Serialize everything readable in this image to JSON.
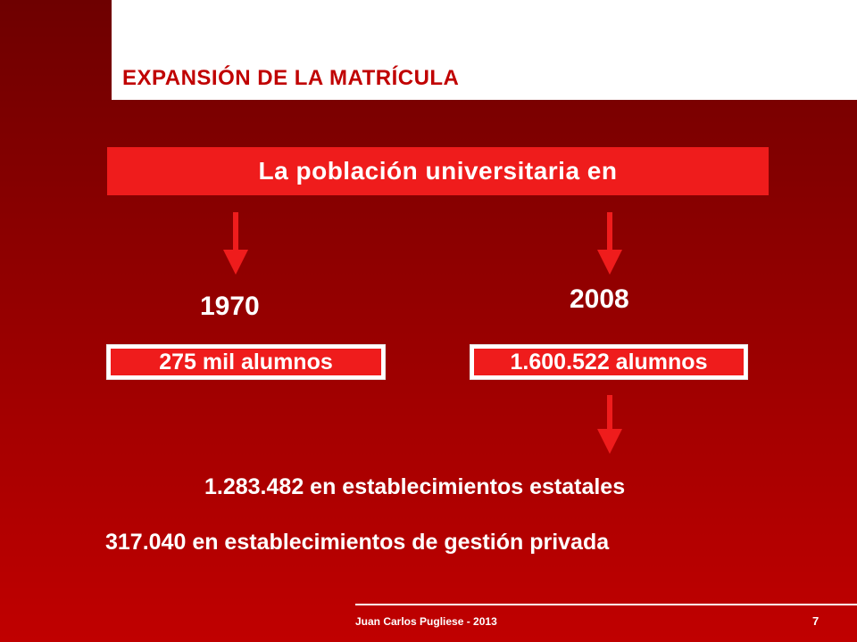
{
  "slide": {
    "title": "EXPANSIÓN DE LA MATRÍCULA",
    "banner": "La población universitaria en",
    "left": {
      "year": "1970",
      "count": "275 mil alumnos"
    },
    "right": {
      "year": "2008",
      "count": "1.600.522 alumnos"
    },
    "breakdown": {
      "state": "1.283.482 en establecimientos estatales",
      "private": "317.040 en establecimientos de gestión privada"
    },
    "footer": {
      "author": "Juan Carlos Pugliese - 2013",
      "page": "7"
    }
  },
  "colors": {
    "accent": "#ef1c1c",
    "title": "#c00000",
    "background_top": "#6e0000",
    "background_bottom": "#c00000"
  }
}
